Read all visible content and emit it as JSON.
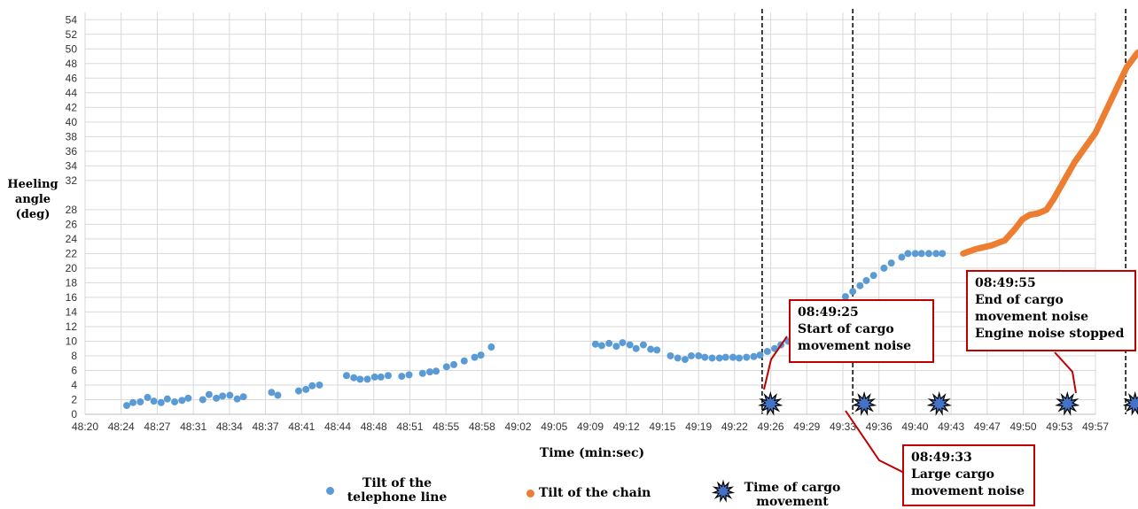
{
  "chart_data": {
    "type": "scatter",
    "xlabel": "Time (min:sec)",
    "ylabel_lines": [
      "Heeling",
      "angle",
      "(deg)"
    ],
    "x_ticks": [
      "48:20",
      "48:24",
      "48:27",
      "48:31",
      "48:34",
      "48:37",
      "48:41",
      "48:44",
      "48:48",
      "48:51",
      "48:55",
      "48:58",
      "49:02",
      "49:05",
      "49:09",
      "49:12",
      "49:15",
      "49:19",
      "49:22",
      "49:26",
      "49:29",
      "49:33",
      "49:36",
      "49:40",
      "49:43",
      "49:47",
      "49:50",
      "49:53",
      "49:57"
    ],
    "x_range_seconds": [
      2900,
      2997
    ],
    "y_ticks": [
      0,
      2,
      4,
      6,
      8,
      10,
      12,
      14,
      16,
      18,
      20,
      22,
      24,
      26,
      28,
      32,
      34,
      36,
      38,
      40,
      42,
      44,
      46,
      48,
      50,
      52,
      54
    ],
    "ylim": [
      0,
      55
    ],
    "grid": true,
    "legend_position": "bottom",
    "colors": {
      "telephone": "#5b9bd5",
      "chain": "#ed7d31",
      "cargo": "#4472c4",
      "callout_border": "#c00000"
    },
    "series": [
      {
        "name": "Tilt of the telephone line",
        "marker": "circle",
        "points": [
          [
            2904.0,
            1.2
          ],
          [
            2904.6,
            1.6
          ],
          [
            2905.3,
            1.7
          ],
          [
            2906.0,
            2.3
          ],
          [
            2906.6,
            1.8
          ],
          [
            2907.3,
            1.6
          ],
          [
            2907.9,
            2.1
          ],
          [
            2908.6,
            1.7
          ],
          [
            2909.3,
            1.9
          ],
          [
            2909.9,
            2.2
          ],
          [
            2911.3,
            2.0
          ],
          [
            2911.9,
            2.7
          ],
          [
            2912.6,
            2.2
          ],
          [
            2913.2,
            2.5
          ],
          [
            2913.9,
            2.6
          ],
          [
            2914.6,
            2.1
          ],
          [
            2915.2,
            2.4
          ],
          [
            2917.9,
            3.0
          ],
          [
            2918.5,
            2.6
          ],
          [
            2920.5,
            3.2
          ],
          [
            2921.2,
            3.4
          ],
          [
            2921.8,
            3.9
          ],
          [
            2922.5,
            4.0
          ],
          [
            2925.1,
            5.3
          ],
          [
            2925.8,
            5.0
          ],
          [
            2926.4,
            4.8
          ],
          [
            2927.1,
            4.8
          ],
          [
            2927.8,
            5.1
          ],
          [
            2928.4,
            5.1
          ],
          [
            2929.1,
            5.3
          ],
          [
            2930.4,
            5.2
          ],
          [
            2931.1,
            5.4
          ],
          [
            2932.4,
            5.6
          ],
          [
            2933.1,
            5.8
          ],
          [
            2933.7,
            5.9
          ],
          [
            2934.7,
            6.5
          ],
          [
            2935.4,
            6.8
          ],
          [
            2936.4,
            7.3
          ],
          [
            2937.4,
            7.8
          ],
          [
            2938.0,
            8.1
          ],
          [
            2939.0,
            9.2
          ],
          [
            2949.0,
            9.6
          ],
          [
            2949.6,
            9.4
          ],
          [
            2950.3,
            9.7
          ],
          [
            2951.0,
            9.3
          ],
          [
            2951.6,
            9.8
          ],
          [
            2952.3,
            9.5
          ],
          [
            2952.9,
            9.0
          ],
          [
            2953.6,
            9.5
          ],
          [
            2954.3,
            8.9
          ],
          [
            2954.9,
            8.8
          ],
          [
            2956.2,
            8.0
          ],
          [
            2956.9,
            7.7
          ],
          [
            2957.6,
            7.5
          ],
          [
            2958.2,
            8.0
          ],
          [
            2958.9,
            8.0
          ],
          [
            2959.5,
            7.8
          ],
          [
            2960.2,
            7.7
          ],
          [
            2960.9,
            7.7
          ],
          [
            2961.5,
            7.8
          ],
          [
            2962.2,
            7.8
          ],
          [
            2962.8,
            7.7
          ],
          [
            2963.5,
            7.8
          ],
          [
            2964.2,
            7.9
          ],
          [
            2964.8,
            8.1
          ],
          [
            2965.5,
            8.6
          ],
          [
            2966.2,
            9.0
          ],
          [
            2966.8,
            9.5
          ],
          [
            2967.5,
            10.0
          ],
          [
            2968.1,
            10.3
          ],
          [
            2968.8,
            11.1
          ],
          [
            2969.5,
            11.9
          ],
          [
            2970.1,
            12.9
          ],
          [
            2970.8,
            13.8
          ],
          [
            2971.4,
            14.4
          ],
          [
            2972.1,
            15.2
          ],
          [
            2973.0,
            16.1
          ],
          [
            2973.7,
            16.8
          ],
          [
            2974.4,
            17.6
          ],
          [
            2975.0,
            18.3
          ],
          [
            2975.7,
            19.0
          ],
          [
            2976.7,
            20.0
          ],
          [
            2977.4,
            20.7
          ],
          [
            2978.4,
            21.5
          ],
          [
            2979.0,
            22.0
          ],
          [
            2979.7,
            22.0
          ],
          [
            2980.3,
            22.0
          ],
          [
            2981.0,
            22.0
          ],
          [
            2981.7,
            22.0
          ],
          [
            2982.3,
            22.0
          ]
        ]
      },
      {
        "name": "Tilt of the chain",
        "marker": "line",
        "points": [
          [
            2984.3,
            22.0
          ],
          [
            2985.5,
            22.6
          ],
          [
            2987.0,
            23.1
          ],
          [
            2988.3,
            23.8
          ],
          [
            2989.3,
            25.4
          ],
          [
            2990.0,
            26.7
          ],
          [
            2990.7,
            27.3
          ],
          [
            2991.5,
            27.5
          ],
          [
            2992.3,
            28.0
          ],
          [
            2993.0,
            29.5
          ],
          [
            2994.0,
            32.0
          ],
          [
            2995.0,
            34.5
          ],
          [
            2996.0,
            36.5
          ],
          [
            2997.0,
            38.5
          ],
          [
            2998.0,
            41.5
          ],
          [
            2999.0,
            44.5
          ],
          [
            3000.0,
            47.5
          ],
          [
            3001.0,
            49.4
          ],
          [
            3002.0,
            50.4
          ],
          [
            3003.0,
            50.6
          ],
          [
            3004.0,
            50.2
          ]
        ]
      },
      {
        "name": "Time of cargo movement",
        "marker": "star",
        "points": [
          [
            2965.8,
            1.2
          ],
          [
            2974.8,
            1.2
          ],
          [
            2982.0,
            1.2
          ],
          [
            2994.3,
            1.2
          ],
          [
            3000.8,
            1.2
          ]
        ]
      }
    ],
    "event_lines_seconds": [
      2965.0,
      2973.7,
      2999.9
    ],
    "annotations": [
      {
        "lines": [
          "08:49:25",
          "Start of cargo",
          "movement noise"
        ]
      },
      {
        "lines": [
          "08:49:33",
          "Large cargo",
          "movement noise"
        ]
      },
      {
        "lines": [
          "08:49:55",
          "End of cargo",
          "movement noise",
          "Engine noise stopped"
        ]
      }
    ],
    "legend": [
      {
        "lines": [
          "Tilt of the",
          "telephone line"
        ]
      },
      {
        "lines": [
          "Tilt of the chain"
        ]
      },
      {
        "lines": [
          "Time of cargo",
          "movement"
        ]
      }
    ]
  }
}
